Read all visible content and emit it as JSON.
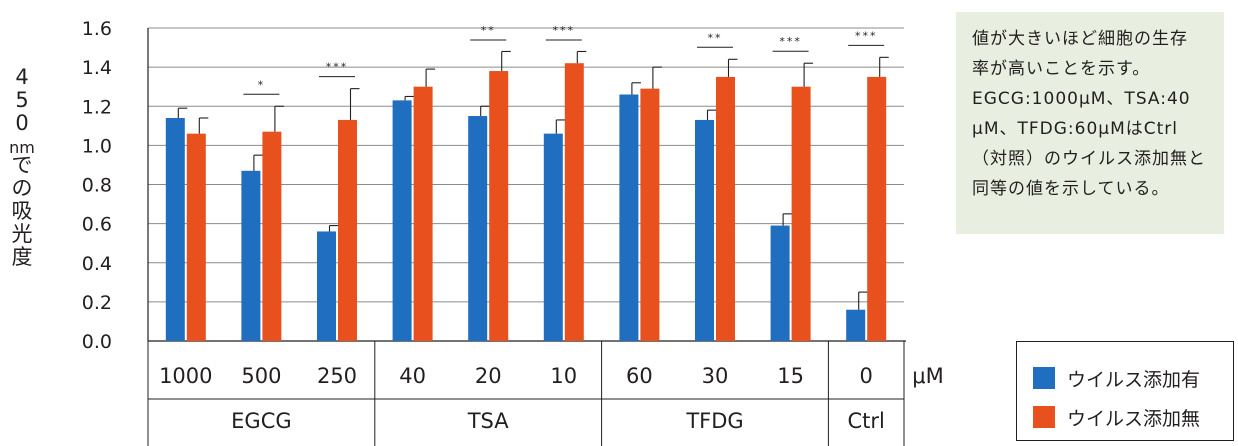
{
  "chart_data": {
    "type": "bar",
    "ylabel": "450nmでの吸光度",
    "ylim": [
      0,
      1.6
    ],
    "yticks": [
      "0.0",
      "0.2",
      "0.4",
      "0.6",
      "0.8",
      "1.0",
      "1.2",
      "1.4",
      "1.6"
    ],
    "grid": true,
    "unit_label": "μM",
    "categories": [
      "1000",
      "500",
      "250",
      "40",
      "20",
      "10",
      "60",
      "30",
      "15",
      "0"
    ],
    "groups": [
      {
        "label": "EGCG",
        "count": 3
      },
      {
        "label": "TSA",
        "count": 3
      },
      {
        "label": "TFDG",
        "count": 3
      },
      {
        "label": "Ctrl",
        "count": 1
      }
    ],
    "series": [
      {
        "name": "ウイルス添加有",
        "color": "#1f6ec0",
        "values": [
          1.14,
          0.87,
          0.56,
          1.23,
          1.15,
          1.06,
          1.26,
          1.13,
          0.59,
          0.16
        ],
        "errors": [
          0.05,
          0.08,
          0.03,
          0.02,
          0.05,
          0.07,
          0.06,
          0.05,
          0.06,
          0.09
        ]
      },
      {
        "name": "ウイルス添加無",
        "color": "#e8511e",
        "values": [
          1.06,
          1.07,
          1.13,
          1.3,
          1.38,
          1.42,
          1.29,
          1.35,
          1.3,
          1.35
        ],
        "errors": [
          0.08,
          0.13,
          0.16,
          0.09,
          0.1,
          0.06,
          0.11,
          0.09,
          0.12,
          0.1
        ]
      }
    ],
    "significance": [
      {
        "category_index": 1,
        "label": "*"
      },
      {
        "category_index": 2,
        "label": "***"
      },
      {
        "category_index": 4,
        "label": "**"
      },
      {
        "category_index": 5,
        "label": "***"
      },
      {
        "category_index": 7,
        "label": "**"
      },
      {
        "category_index": 8,
        "label": "***"
      },
      {
        "category_index": 9,
        "label": "***"
      }
    ]
  },
  "note": {
    "lines": [
      "値が大きいほど細胞の生存",
      "率が高いことを示す。",
      "EGCG:1000μM、TSA:40",
      "μM、TFDG:60μMはCtrl",
      "（対照）のウイルス添加無と",
      "同等の値を示している。"
    ]
  },
  "legend": {
    "items": [
      {
        "label": "ウイルス添加有",
        "color": "#1f6ec0"
      },
      {
        "label": "ウイルス添加無",
        "color": "#e8511e"
      }
    ]
  }
}
